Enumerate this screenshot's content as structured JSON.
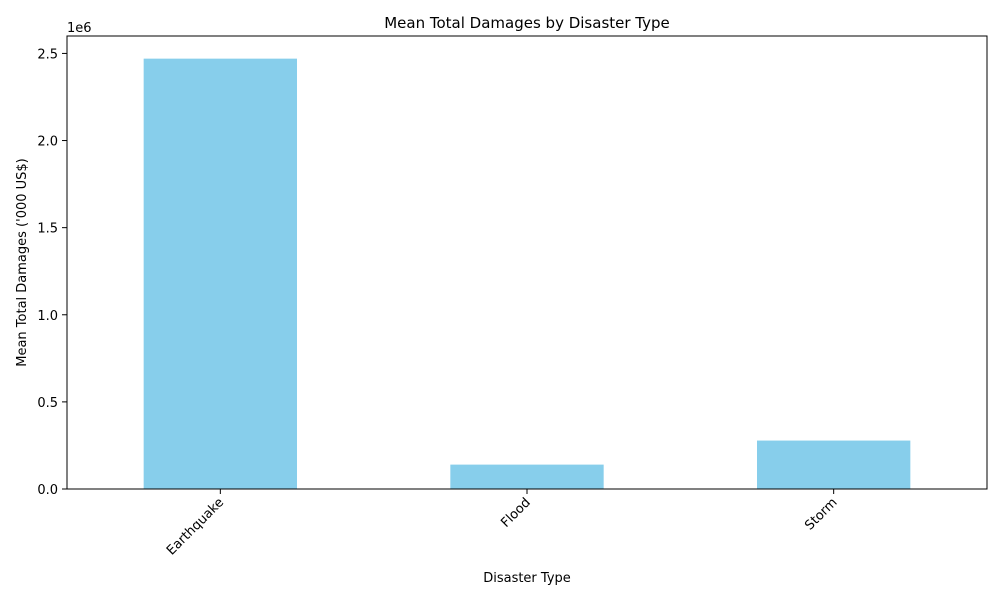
{
  "chart_data": {
    "type": "bar",
    "title": "Mean Total Damages by Disaster Type",
    "xlabel": "Disaster Type",
    "ylabel": "Mean Total Damages ('000 US$)",
    "categories": [
      "Earthquake",
      "Flood",
      "Storm"
    ],
    "values": [
      2470000,
      140000,
      278000
    ],
    "ylim": [
      0,
      2600000
    ],
    "yticks": [
      0,
      500000,
      1000000,
      1500000,
      2000000,
      2500000
    ],
    "ytick_labels": [
      "0.0",
      "0.5",
      "1.0",
      "1.5",
      "2.0",
      "2.5"
    ],
    "offset_label": "1e6",
    "bar_color": "#87CEEB",
    "grid": false,
    "legend": "none"
  }
}
